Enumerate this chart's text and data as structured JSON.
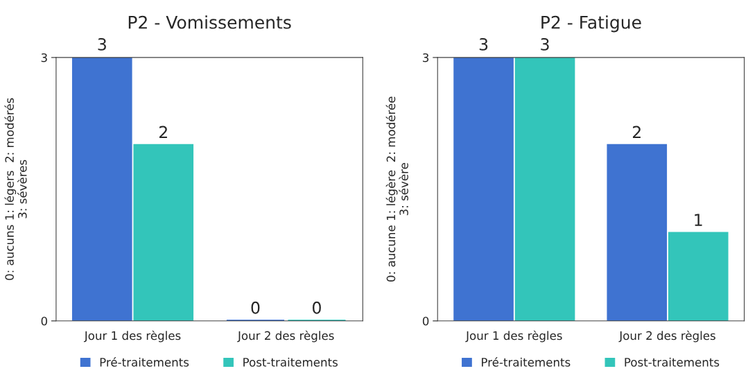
{
  "chart_data": [
    {
      "type": "bar",
      "title": "P2 - Vomissements",
      "ylabel": "0: aucuns 1: légers  2: modérés\n3: sévères",
      "categories": [
        "Jour 1 des règles",
        "Jour 2 des règles"
      ],
      "series": [
        {
          "name": "Pré-traitements",
          "color": "#3f73d1",
          "values": [
            3,
            0
          ]
        },
        {
          "name": "Post-traitements",
          "color": "#33c5ba",
          "values": [
            2,
            0
          ]
        }
      ],
      "ylim": [
        0,
        3
      ],
      "yticks": [
        0,
        3
      ],
      "data_labels": true,
      "legend": "bottom",
      "grid": false
    },
    {
      "type": "bar",
      "title": "P2 - Fatigue",
      "ylabel": "0: aucune 1: légère  2: modérée\n3: sévère",
      "categories": [
        "Jour 1 des règles",
        "Jour 2 des règles"
      ],
      "series": [
        {
          "name": "Pré-traitements",
          "color": "#3f73d1",
          "values": [
            3,
            2
          ]
        },
        {
          "name": "Post-traitements",
          "color": "#33c5ba",
          "values": [
            3,
            1
          ]
        }
      ],
      "ylim": [
        0,
        3
      ],
      "yticks": [
        0,
        3
      ],
      "data_labels": true,
      "legend": "bottom",
      "grid": false
    }
  ]
}
